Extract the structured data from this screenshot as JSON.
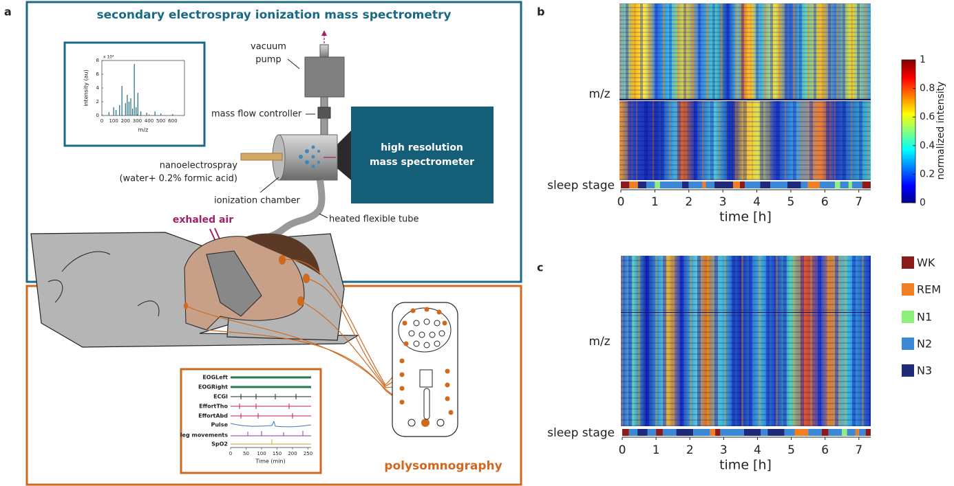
{
  "panel_labels": [
    "a",
    "b",
    "c"
  ],
  "panel_a": {
    "title": "secondary electrospray ionization mass spectrometry",
    "vacuum_pump": [
      "vacuum",
      "pump"
    ],
    "mass_flow_controller": "mass flow controller",
    "mass_spectrometer": [
      "high resolution",
      "mass spectrometer"
    ],
    "nanoelectrospray": [
      "nanoelectrospray",
      "(water+ 0.2% formic acid)"
    ],
    "ionization_chamber": "ionization chamber",
    "heated_tube": "heated flexible tube",
    "exhaled_air": "exhaled air",
    "polysomnography": "polysomnography",
    "spectrum_inset": {
      "type": "bar",
      "xlabel": "m/z",
      "ylabel": "intensity (au)",
      "multiplier": "x 10⁴",
      "x": [
        60,
        100,
        120,
        150,
        170,
        200,
        215,
        230,
        245,
        260,
        275,
        290,
        305,
        330,
        380,
        450,
        500,
        600
      ],
      "values": [
        0.5,
        1.2,
        0.8,
        1.5,
        4.3,
        1.8,
        3.0,
        2.0,
        2.5,
        1.0,
        7.5,
        1.2,
        3.3,
        0.6,
        0.4,
        0.6,
        0.3,
        0.2
      ],
      "color": "#1a6a86",
      "xlim": [
        0,
        700
      ],
      "xticks": [
        0,
        100,
        200,
        300,
        400,
        500,
        600
      ],
      "ylim": [
        0,
        8
      ],
      "yticks": [
        0,
        2,
        4,
        6,
        8
      ]
    },
    "psg_inset": {
      "channels": [
        "EOGLeft",
        "EOGRight",
        "ECGI",
        "EffortTho",
        "EffortAbd",
        "Pulse",
        "leg movements",
        "SpO2"
      ],
      "xlabel": "Time (min)",
      "xlim": [
        0,
        260
      ],
      "xticks": [
        0,
        50,
        100,
        150,
        200,
        250
      ]
    }
  },
  "panel_b": {
    "ylabel": "m/z",
    "stage_label": "sleep stage",
    "xlabel": "time [h]",
    "xlim": [
      0,
      7.35
    ],
    "xticks": [
      0,
      1,
      2,
      3,
      4,
      5,
      6,
      7
    ],
    "hypnogram": [
      {
        "start": 0,
        "end": 0.25,
        "stage": 0
      },
      {
        "start": 0.25,
        "end": 0.5,
        "stage": 1
      },
      {
        "start": 0.5,
        "end": 0.75,
        "stage": 4
      },
      {
        "start": 0.75,
        "end": 1.0,
        "stage": 3
      },
      {
        "start": 1.0,
        "end": 1.15,
        "stage": 2
      },
      {
        "start": 1.15,
        "end": 1.8,
        "stage": 3
      },
      {
        "start": 1.8,
        "end": 2.0,
        "stage": 4
      },
      {
        "start": 2.0,
        "end": 2.4,
        "stage": 3
      },
      {
        "start": 2.4,
        "end": 2.5,
        "stage": 1
      },
      {
        "start": 2.5,
        "end": 2.75,
        "stage": 3
      },
      {
        "start": 2.75,
        "end": 3.3,
        "stage": 4
      },
      {
        "start": 3.3,
        "end": 3.5,
        "stage": 1
      },
      {
        "start": 3.5,
        "end": 3.65,
        "stage": 0
      },
      {
        "start": 3.65,
        "end": 4.1,
        "stage": 3
      },
      {
        "start": 4.1,
        "end": 4.4,
        "stage": 4
      },
      {
        "start": 4.4,
        "end": 4.9,
        "stage": 3
      },
      {
        "start": 4.9,
        "end": 5.3,
        "stage": 4
      },
      {
        "start": 5.3,
        "end": 5.5,
        "stage": 3
      },
      {
        "start": 5.5,
        "end": 5.85,
        "stage": 1
      },
      {
        "start": 5.85,
        "end": 6.3,
        "stage": 3
      },
      {
        "start": 6.3,
        "end": 6.45,
        "stage": 2
      },
      {
        "start": 6.45,
        "end": 6.7,
        "stage": 3
      },
      {
        "start": 6.7,
        "end": 6.8,
        "stage": 2
      },
      {
        "start": 6.8,
        "end": 7.1,
        "stage": 3
      },
      {
        "start": 7.1,
        "end": 7.35,
        "stage": 0
      }
    ]
  },
  "panel_c": {
    "ylabel": "m/z",
    "stage_label": "sleep stage",
    "xlabel": "time [h]",
    "xlim": [
      0,
      7.35
    ],
    "xticks": [
      0,
      1,
      2,
      3,
      4,
      5,
      6,
      7
    ],
    "hypnogram": [
      {
        "start": 0,
        "end": 0.2,
        "stage": 0
      },
      {
        "start": 0.2,
        "end": 0.45,
        "stage": 3
      },
      {
        "start": 0.45,
        "end": 0.75,
        "stage": 4
      },
      {
        "start": 0.75,
        "end": 1.0,
        "stage": 3
      },
      {
        "start": 1.0,
        "end": 1.2,
        "stage": 0
      },
      {
        "start": 1.2,
        "end": 1.6,
        "stage": 3
      },
      {
        "start": 1.6,
        "end": 2.1,
        "stage": 4
      },
      {
        "start": 2.1,
        "end": 2.6,
        "stage": 3
      },
      {
        "start": 2.6,
        "end": 2.75,
        "stage": 1
      },
      {
        "start": 2.75,
        "end": 2.9,
        "stage": 0
      },
      {
        "start": 2.9,
        "end": 3.6,
        "stage": 3
      },
      {
        "start": 3.6,
        "end": 4.1,
        "stage": 4
      },
      {
        "start": 4.1,
        "end": 4.3,
        "stage": 3
      },
      {
        "start": 4.3,
        "end": 4.8,
        "stage": 4
      },
      {
        "start": 4.8,
        "end": 5.1,
        "stage": 3
      },
      {
        "start": 5.1,
        "end": 5.5,
        "stage": 1
      },
      {
        "start": 5.5,
        "end": 5.9,
        "stage": 3
      },
      {
        "start": 5.9,
        "end": 6.1,
        "stage": 0
      },
      {
        "start": 6.1,
        "end": 6.5,
        "stage": 3
      },
      {
        "start": 6.5,
        "end": 6.65,
        "stage": 2
      },
      {
        "start": 6.65,
        "end": 6.9,
        "stage": 3
      },
      {
        "start": 6.9,
        "end": 7.0,
        "stage": 1
      },
      {
        "start": 7.0,
        "end": 7.2,
        "stage": 3
      },
      {
        "start": 7.2,
        "end": 7.35,
        "stage": 0
      }
    ]
  },
  "colorbar": {
    "label": "normalized intensity",
    "ylim": [
      0,
      1
    ],
    "yticks": [
      0,
      0.2,
      0.4,
      0.6,
      0.8,
      1
    ]
  },
  "legend": [
    {
      "name": "WK",
      "color": "#8b1a1a"
    },
    {
      "name": "REM",
      "color": "#f07f24"
    },
    {
      "name": "N1",
      "color": "#8ef07a"
    },
    {
      "name": "N2",
      "color": "#3b88d6"
    },
    {
      "name": "N3",
      "color": "#1f2a7a"
    }
  ]
}
